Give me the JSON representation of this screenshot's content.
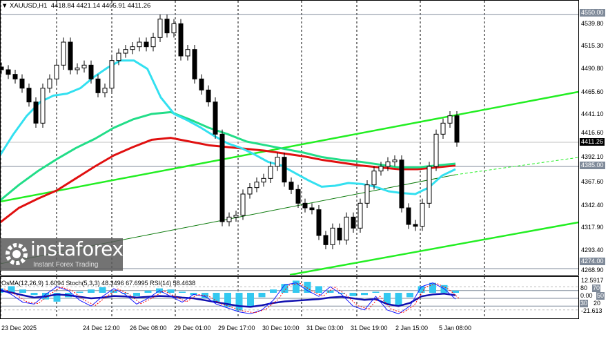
{
  "header": {
    "symbol": "XAUUSD,H1",
    "ohlc": "4418.84 4421.14 4405.91 4411.26"
  },
  "indicator_header": "OsMA(12,26,9) 1.6094  Stoch(5,3,3) 48.3496 67.6995  RSI(14) 58.4638",
  "price_axis": [
    "4539.80",
    "4515.30",
    "4490.80",
    "4465.60",
    "4441.10",
    "4416.60",
    "4392.10",
    "4367.60",
    "4342.40",
    "4317.90",
    "4293.40",
    "4268.90"
  ],
  "levels": {
    "top": "4550.00",
    "mid": "4385.00",
    "bottom": "4274.00",
    "current": "4411.26"
  },
  "indicator_axis": {
    "max": "12.5917",
    "l80": "80",
    "l70": "70",
    "zero": "0.00",
    "l50": "50",
    "l30": "30",
    "l20": "20",
    "min": "-21.613"
  },
  "time_axis": [
    "23 Dec 2025",
    "24 Dec 12:00",
    "26 Dec 08:00",
    "29 Dec 01:00",
    "29 Dec 17:00",
    "30 Dec 10:00",
    "31 Dec 03:00",
    "31 Dec 19:00",
    "2 Jan 15:00",
    "5 Jan 08:00"
  ],
  "logo": {
    "name": "instaforex",
    "tagline": "Instant Forex Trading"
  },
  "colors": {
    "ma_fast": "#33e0f0",
    "ma_mid": "#22dd88",
    "ma_slow": "#e01010",
    "trend": "#22ee22",
    "trend_dark": "#0b7a0b",
    "osma": "#33c8f0",
    "stoch": "#1a1aff",
    "signal": "#ff0000",
    "rsi": "#1010b0"
  },
  "chart_data": {
    "type": "candlestick",
    "closes": [
      4490,
      4485,
      4480,
      4470,
      4455,
      4432,
      4470,
      4480,
      4495,
      4520,
      4490,
      4492,
      4495,
      4480,
      4465,
      4470,
      4500,
      4508,
      4512,
      4515,
      4520,
      4515,
      4525,
      4545,
      4530,
      4540,
      4505,
      4512,
      4480,
      4468,
      4455,
      4420,
      4325,
      4330,
      4332,
      4355,
      4362,
      4368,
      4372,
      4385,
      4395,
      4368,
      4360,
      4345,
      4340,
      4338,
      4310,
      4300,
      4318,
      4305,
      4330,
      4318,
      4345,
      4365,
      4380,
      4385,
      4390,
      4392,
      4340,
      4322,
      4320,
      4345,
      4385,
      4420,
      4432,
      4440,
      4411.26
    ],
    "ma_fast": [
      4397,
      4420,
      4440,
      4455,
      4462,
      4464,
      4470,
      4482,
      4492,
      4500,
      4500,
      4491,
      4460,
      4442,
      4435,
      4427,
      4418,
      4410,
      4405,
      4398,
      4390,
      4386,
      4378,
      4370,
      4363,
      4364,
      4367,
      4366,
      4363,
      4358,
      4356,
      4355,
      4362,
      4375,
      4382
    ],
    "ma_mid": [
      4348,
      4365,
      4380,
      4393,
      4405,
      4415,
      4427,
      4436,
      4442,
      4444,
      4436,
      4427,
      4420,
      4412,
      4408,
      4404,
      4400,
      4395,
      4392,
      4390,
      4387,
      4384,
      4384,
      4386,
      4388
    ],
    "ma_slow": [
      4324,
      4340,
      4350,
      4359,
      4372,
      4385,
      4397,
      4406,
      4414,
      4416,
      4412,
      4408,
      4406,
      4404,
      4402,
      4399,
      4396,
      4392,
      4389,
      4386,
      4384,
      4382,
      4382,
      4384,
      4386
    ],
    "osma": [
      4,
      6,
      3,
      -2,
      -6,
      -8,
      -4,
      1,
      3,
      5,
      2,
      -1,
      -3,
      2,
      4,
      3,
      1,
      -2,
      -5,
      -9,
      -13,
      -16,
      -12,
      -4,
      3,
      8,
      11,
      10,
      6,
      2,
      -1,
      -3,
      -2,
      1,
      -10,
      -12,
      -4,
      6,
      9,
      7,
      2
    ],
    "stoch": [
      75,
      60,
      40,
      35,
      60,
      80,
      70,
      45,
      30,
      55,
      75,
      60,
      35,
      50,
      70,
      55,
      40,
      60,
      55,
      35,
      25,
      15,
      10,
      20,
      45,
      85,
      90,
      70,
      55,
      80,
      60,
      30,
      20,
      55,
      20,
      10,
      30,
      80,
      90,
      75,
      48
    ],
    "rsi": [
      70,
      65,
      58,
      52,
      55,
      60,
      58,
      54,
      50,
      52,
      56,
      55,
      52,
      54,
      56,
      55,
      52,
      50,
      45,
      40,
      35,
      30,
      28,
      32,
      38,
      42,
      44,
      46,
      48,
      52,
      54,
      50,
      46,
      48,
      35,
      30,
      38,
      55,
      60,
      62,
      58
    ],
    "ylim": [
      4268.9,
      4550.0
    ]
  }
}
